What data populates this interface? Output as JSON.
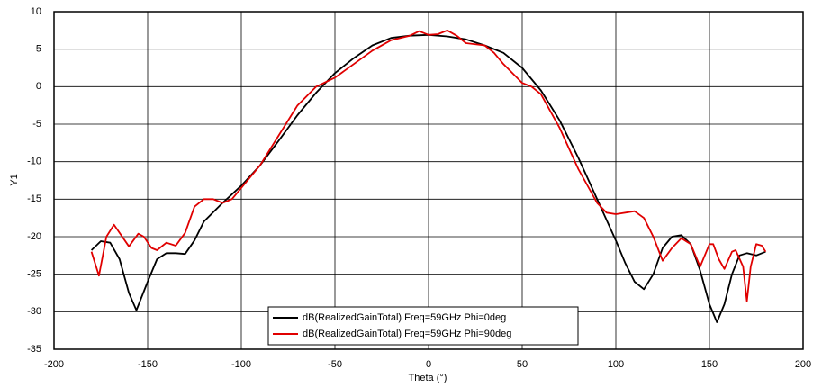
{
  "chart_data": {
    "type": "line",
    "xlabel": "Theta (°)",
    "ylabel": "Y1",
    "xlim": [
      -200,
      200
    ],
    "xticks": [
      -200,
      -150,
      -100,
      -50,
      0,
      50,
      100,
      150,
      200
    ],
    "ylim": [
      -35,
      10
    ],
    "yticks": [
      -35,
      -30,
      -25,
      -20,
      -15,
      -10,
      -5,
      0,
      5,
      10
    ],
    "grid": true,
    "legend": "lower center",
    "series": [
      {
        "name": "dB(RealizedGainTotal) Freq=59GHz Phi=0deg",
        "color": "#000000",
        "x": [
          -180,
          -175,
          -170,
          -165,
          -160,
          -156,
          -150,
          -145,
          -140,
          -135,
          -130,
          -125,
          -120,
          -110,
          -100,
          -90,
          -80,
          -70,
          -60,
          -50,
          -40,
          -30,
          -20,
          -10,
          0,
          10,
          20,
          30,
          40,
          50,
          60,
          70,
          80,
          90,
          100,
          105,
          110,
          115,
          120,
          125,
          130,
          135,
          140,
          145,
          150,
          154,
          158,
          162,
          166,
          170,
          175,
          180
        ],
        "values": [
          -21.8,
          -20.6,
          -20.8,
          -23,
          -27.5,
          -29.8,
          -26,
          -23,
          -22.2,
          -22.2,
          -22.3,
          -20.5,
          -18,
          -15.5,
          -13.2,
          -10.5,
          -7.2,
          -3.8,
          -0.8,
          1.8,
          3.8,
          5.5,
          6.5,
          6.8,
          6.9,
          6.7,
          6.3,
          5.5,
          4.5,
          2.5,
          -0.5,
          -4.5,
          -9.5,
          -15,
          -20.5,
          -23.5,
          -26,
          -27,
          -25,
          -21.5,
          -20,
          -19.8,
          -21,
          -24.5,
          -29,
          -31.4,
          -29,
          -25,
          -22.5,
          -22.2,
          -22.5,
          -22
        ]
      },
      {
        "name": "dB(RealizedGainTotal) Freq=59GHz Phi=90deg",
        "color": "#e00000",
        "x": [
          -180,
          -176,
          -172,
          -168,
          -165,
          -160,
          -155,
          -152,
          -148,
          -145,
          -140,
          -135,
          -130,
          -125,
          -120,
          -115,
          -110,
          -105,
          -100,
          -90,
          -80,
          -70,
          -60,
          -50,
          -40,
          -30,
          -20,
          -10,
          -5,
          0,
          5,
          10,
          15,
          20,
          30,
          35,
          40,
          50,
          55,
          60,
          70,
          80,
          90,
          95,
          100,
          110,
          115,
          120,
          125,
          130,
          135,
          140,
          145,
          150,
          152,
          155,
          158,
          162,
          164,
          168,
          170,
          172,
          175,
          178,
          180
        ],
        "values": [
          -22,
          -25.2,
          -20,
          -18.4,
          -19.5,
          -21.3,
          -19.6,
          -20,
          -21.5,
          -21.8,
          -20.8,
          -21.2,
          -19.5,
          -16,
          -15,
          -15,
          -15.5,
          -15,
          -13.5,
          -10.5,
          -6.5,
          -2.5,
          0,
          1.2,
          3,
          4.8,
          6.2,
          6.8,
          7.4,
          6.9,
          7,
          7.5,
          6.8,
          5.8,
          5.5,
          4.5,
          3,
          0.5,
          0,
          -1,
          -5.5,
          -11,
          -15.5,
          -16.8,
          -17,
          -16.6,
          -17.5,
          -20,
          -23.2,
          -21.5,
          -20.2,
          -21,
          -24,
          -21,
          -21,
          -23,
          -24.3,
          -22,
          -21.8,
          -24,
          -28.6,
          -24,
          -21,
          -21.2,
          -22
        ]
      }
    ]
  }
}
